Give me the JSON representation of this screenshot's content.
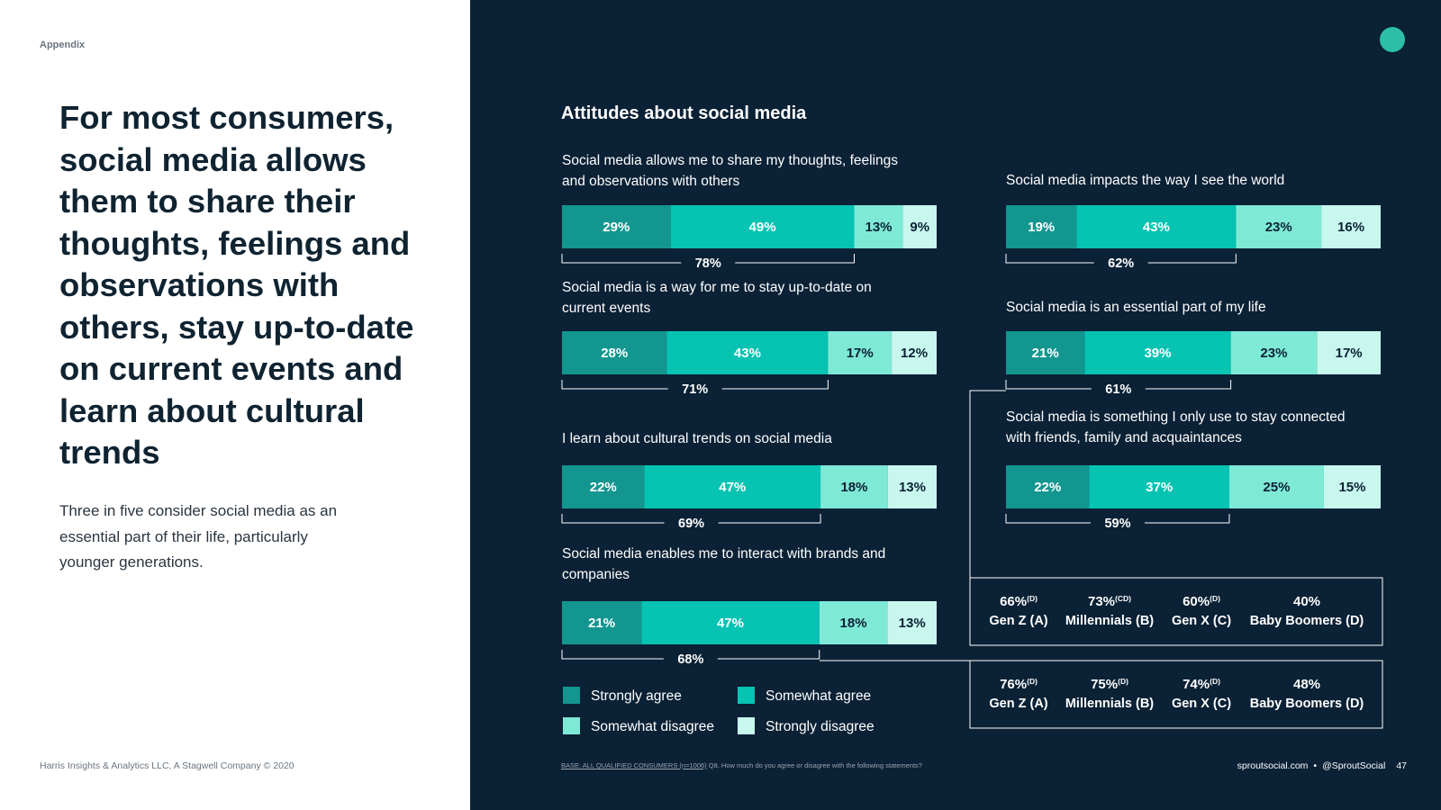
{
  "left_panel": {
    "section_label": "Appendix",
    "headline": "For most consumers, social media allows them to share their thoughts, feelings and observations with others, stay up-to-date on current events and learn about cultural trends",
    "subtext": "Three in five consider social media as an essential part of their life, particularly younger generations.",
    "copyright": "Harris Insights & Analytics LLC, A Stagwell Company © 2020"
  },
  "footer": {
    "base_prefix": "BASE: ALL QUALIFIED CONSUMERS (n=1006)",
    "base_question": " Q8. How much do you agree or disagree with the following statements?",
    "site": "sproutsocial.com",
    "separator": "•",
    "handle": "@SproutSocial",
    "page_number": "47"
  },
  "colors": {
    "strongly_agree": "#12968f",
    "somewhat_agree": "#06c3b2",
    "somewhat_disagree": "#7eead6",
    "strongly_disagree": "#c8f7ee",
    "panel_bg": "#0b2135",
    "accent_dot": "#2bbfa9"
  },
  "chart_data": {
    "type": "bar",
    "orientation": "horizontal",
    "stacked": true,
    "title": "Attitudes about social media",
    "categories": [
      "Strongly agree",
      "Somewhat agree",
      "Somewhat disagree",
      "Strongly disagree"
    ],
    "legend": [
      "Strongly agree",
      "Somewhat agree",
      "Somewhat disagree",
      "Strongly disagree"
    ],
    "statements": [
      {
        "label_lines": [
          "Social media allows me to share my thoughts, feelings",
          "and observations with others"
        ],
        "values": [
          29,
          49,
          13,
          9
        ],
        "agree_total": "78%"
      },
      {
        "label_lines": [
          "Social media is a way for me to stay up-to-date on",
          "current events"
        ],
        "values": [
          28,
          43,
          17,
          12
        ],
        "agree_total": "71%"
      },
      {
        "label_lines": [
          "I learn about cultural trends on social media"
        ],
        "values": [
          22,
          47,
          18,
          13
        ],
        "agree_total": "69%"
      },
      {
        "label_lines": [
          "Social media enables me to interact with brands and",
          "companies"
        ],
        "values": [
          21,
          47,
          18,
          13
        ],
        "agree_total": "68%"
      },
      {
        "label_lines": [
          "Social media impacts the way I see the world"
        ],
        "values": [
          19,
          43,
          23,
          16
        ],
        "agree_total": "62%"
      },
      {
        "label_lines": [
          "Social media is an essential part of my life"
        ],
        "values": [
          21,
          39,
          23,
          17
        ],
        "agree_total": "61%"
      },
      {
        "label_lines": [
          "Social media is something I only use to stay connected",
          "with friends, family and acquaintances"
        ],
        "values": [
          22,
          37,
          25,
          15
        ],
        "agree_total": "59%"
      }
    ],
    "generation_breakdowns": [
      {
        "for_statement": "Social media is an essential part of my life",
        "groups": [
          {
            "value": "66%",
            "sig": "(D)",
            "name": "Gen Z (A)"
          },
          {
            "value": "73%",
            "sig": "(CD)",
            "name": "Millennials (B)"
          },
          {
            "value": "60%",
            "sig": "(D)",
            "name": "Gen X (C)"
          },
          {
            "value": "40%",
            "sig": "",
            "name": "Baby Boomers (D)"
          }
        ]
      },
      {
        "for_statement": "Social media enables me to interact with brands and companies",
        "groups": [
          {
            "value": "76%",
            "sig": "(D)",
            "name": "Gen Z (A)"
          },
          {
            "value": "75%",
            "sig": "(D)",
            "name": "Millennials (B)"
          },
          {
            "value": "74%",
            "sig": "(D)",
            "name": "Gen X (C)"
          },
          {
            "value": "48%",
            "sig": "",
            "name": "Baby Boomers (D)"
          }
        ]
      }
    ]
  }
}
